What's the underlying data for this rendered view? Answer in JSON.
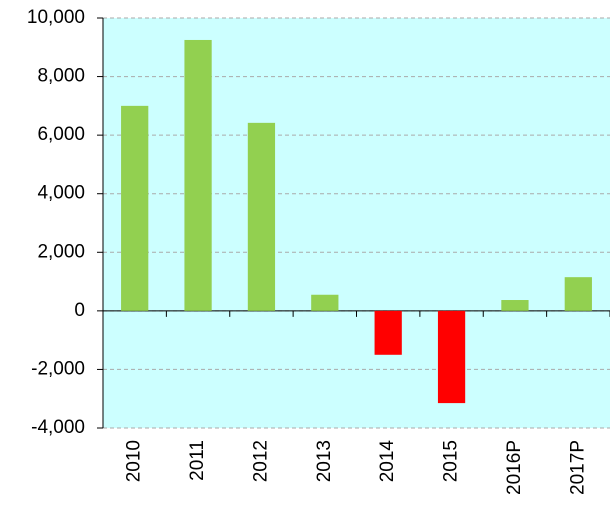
{
  "chart_data": {
    "type": "bar",
    "categories": [
      "2010",
      "2011",
      "2012",
      "2013",
      "2014",
      "2015",
      "2016P",
      "2017P"
    ],
    "values": [
      7000,
      9250,
      6420,
      550,
      -1500,
      -3150,
      370,
      1150
    ],
    "colors": [
      "#92d050",
      "#92d050",
      "#92d050",
      "#92d050",
      "#ff0000",
      "#ff0000",
      "#92d050",
      "#92d050"
    ],
    "ylim": [
      -4000,
      10000
    ],
    "yticks": [
      {
        "value": -4000,
        "label": "-4,000"
      },
      {
        "value": -2000,
        "label": "-2,000"
      },
      0,
      {
        "value": 2000,
        "label": "2,000"
      },
      {
        "value": 4000,
        "label": "4,000"
      },
      {
        "value": 6000,
        "label": "6,000"
      },
      {
        "value": 8000,
        "label": "8,000"
      },
      {
        "value": 10000,
        "label": "10,000"
      }
    ],
    "grid": true,
    "background": "#ccffff"
  }
}
